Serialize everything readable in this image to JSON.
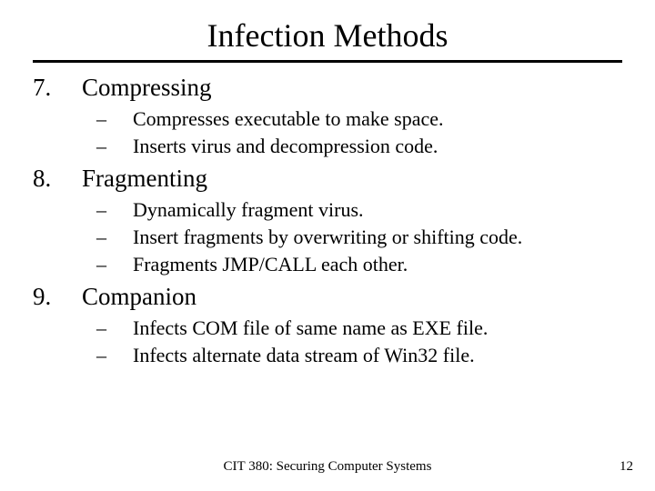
{
  "title": "Infection Methods",
  "items": [
    {
      "num": "7.",
      "heading": "Compressing",
      "sub": [
        "Compresses executable to make space.",
        "Inserts virus and decompression code."
      ]
    },
    {
      "num": "8.",
      "heading": "Fragmenting",
      "sub": [
        "Dynamically fragment virus.",
        "Insert fragments by overwriting or shifting code.",
        "Fragments JMP/CALL each other."
      ]
    },
    {
      "num": "9.",
      "heading": "Companion",
      "sub": [
        "Infects COM file of same name as EXE file.",
        "Infects alternate data stream of Win32 file."
      ]
    }
  ],
  "footer": "CIT 380: Securing Computer Systems",
  "page_number": "12",
  "colors": {
    "background": "#ffffff",
    "text": "#000000",
    "rule": "#000000"
  },
  "typography": {
    "title_fontsize": 36,
    "heading_fontsize": 27,
    "sub_fontsize": 22,
    "footer_fontsize": 15,
    "font_family": "Times New Roman"
  }
}
